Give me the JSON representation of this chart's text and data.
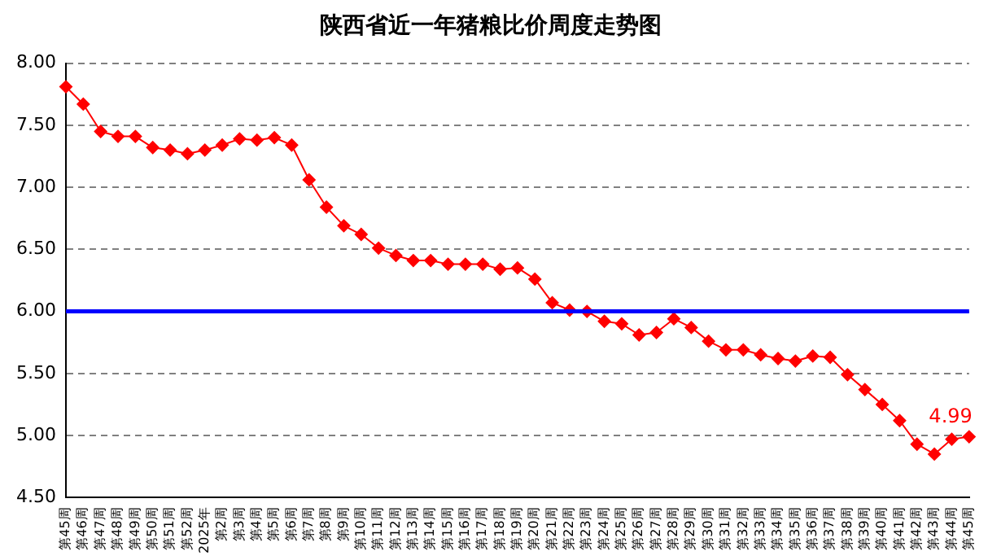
{
  "chart_data": {
    "type": "line",
    "title": "陕西省近一年猪粮比价周度走势图",
    "categories": [
      "第45周",
      "第46周",
      "第47周",
      "第48周",
      "第49周",
      "第50周",
      "第51周",
      "第52周",
      "2025年",
      "第2周",
      "第3周",
      "第4周",
      "第5周",
      "第6周",
      "第7周",
      "第8周",
      "第9周",
      "第10周",
      "第11周",
      "第12周",
      "第13周",
      "第14周",
      "第15周",
      "第16周",
      "第17周",
      "第18周",
      "第19周",
      "第20周",
      "第21周",
      "第22周",
      "第23周",
      "第24周",
      "第25周",
      "第26周",
      "第27周",
      "第28周",
      "第29周",
      "第30周",
      "第31周",
      "第32周",
      "第33周",
      "第34周",
      "第35周",
      "第36周",
      "第37周",
      "第38周",
      "第39周",
      "第40周",
      "第41周",
      "第42周",
      "第43周",
      "第44周",
      "第45周"
    ],
    "series": [
      {
        "color": "#ff0000",
        "values": [
          7.81,
          7.67,
          7.45,
          7.41,
          7.41,
          7.32,
          7.3,
          7.27,
          7.3,
          7.34,
          7.39,
          7.38,
          7.4,
          7.34,
          7.06,
          6.84,
          6.69,
          6.62,
          6.51,
          6.45,
          6.41,
          6.41,
          6.38,
          6.38,
          6.38,
          6.34,
          6.35,
          6.26,
          6.07,
          6.01,
          6.0,
          5.92,
          5.9,
          5.81,
          5.83,
          5.94,
          5.87,
          5.76,
          5.69,
          5.69,
          5.65,
          5.62,
          5.6,
          5.64,
          5.63,
          5.49,
          5.37,
          5.25,
          5.12,
          4.93,
          4.85,
          4.97,
          4.99
        ],
        "value_labels": [
          null,
          null,
          null,
          null,
          null,
          null,
          null,
          null,
          null,
          null,
          null,
          null,
          null,
          null,
          null,
          null,
          null,
          null,
          null,
          null,
          null,
          null,
          null,
          null,
          null,
          null,
          null,
          null,
          null,
          null,
          null,
          null,
          null,
          null,
          null,
          null,
          null,
          null,
          null,
          null,
          null,
          null,
          null,
          null,
          null,
          null,
          null,
          null,
          null,
          null,
          null,
          null,
          "4.99"
        ]
      }
    ],
    "ylim": [
      4.5,
      8
    ],
    "yticks": [
      {
        "value": 4.5,
        "label": "4.50"
      },
      {
        "value": 5,
        "label": "5.00"
      },
      {
        "value": 5.5,
        "label": "5.50"
      },
      {
        "value": 6,
        "label": "6.00"
      },
      {
        "value": 6.5,
        "label": "6.50"
      },
      {
        "value": 7,
        "label": "7.00"
      },
      {
        "value": 7.5,
        "label": "7.50"
      },
      {
        "value": 8,
        "label": "8.00"
      }
    ],
    "ref_lines": [
      {
        "axis": "y",
        "value": 6,
        "color": "#0000ff"
      }
    ],
    "grid": "y",
    "legend": false,
    "marker": "diamond",
    "line_style": "solid"
  }
}
